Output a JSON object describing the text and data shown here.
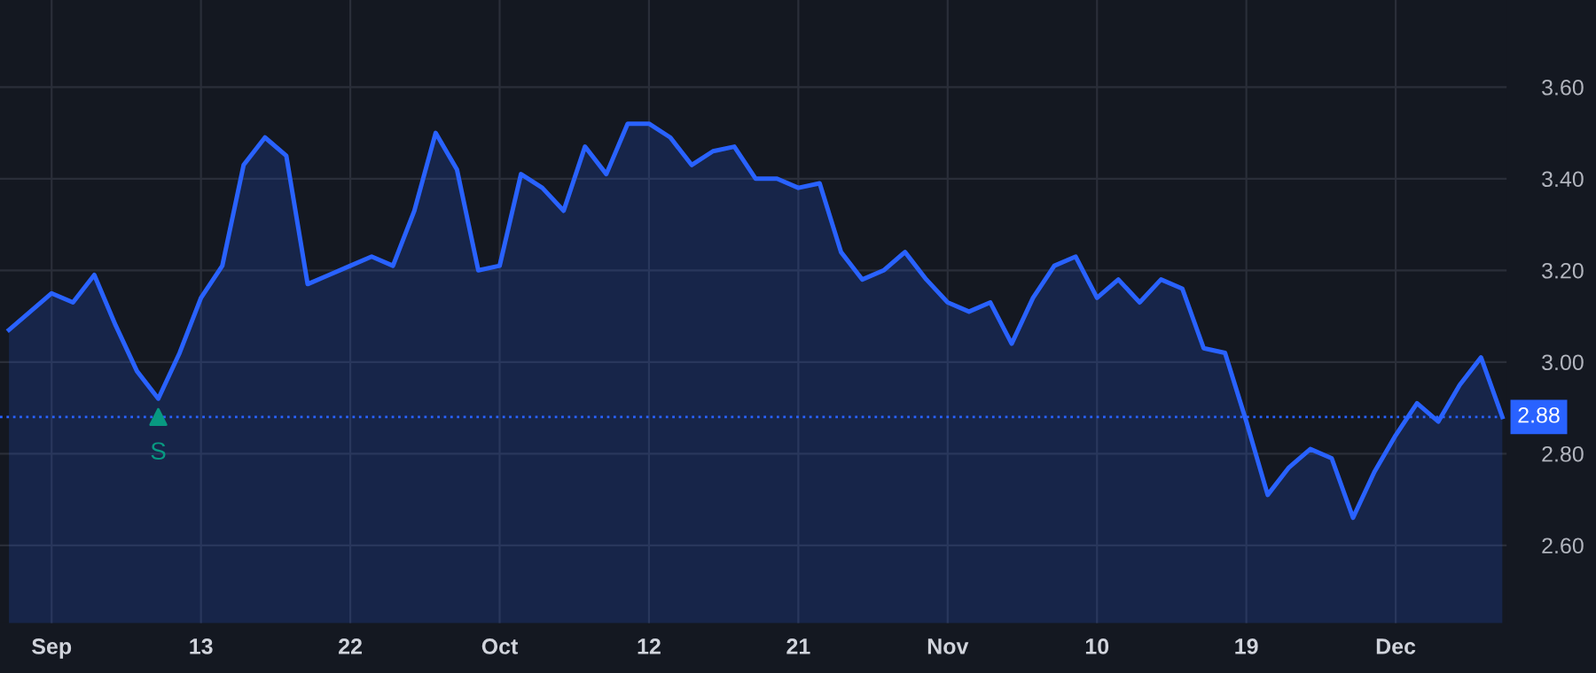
{
  "chart_data": {
    "type": "area",
    "categories": [
      null,
      null,
      "Sep",
      null,
      null,
      null,
      null,
      null,
      null,
      "13",
      null,
      null,
      null,
      null,
      null,
      null,
      "22",
      null,
      null,
      null,
      null,
      null,
      null,
      "Oct",
      null,
      null,
      null,
      null,
      null,
      null,
      "12",
      null,
      null,
      null,
      null,
      null,
      null,
      "21",
      null,
      null,
      null,
      null,
      null,
      null,
      "Nov",
      null,
      null,
      null,
      null,
      null,
      null,
      "10",
      null,
      null,
      null,
      null,
      null,
      null,
      "19",
      null,
      null,
      null,
      null,
      null,
      null,
      "Dec",
      null,
      null,
      null,
      null,
      null
    ],
    "series": [
      {
        "color": "#2962ff",
        "values": [
          3.07,
          3.11,
          3.15,
          3.13,
          3.19,
          3.08,
          2.98,
          2.92,
          3.02,
          3.14,
          3.21,
          3.43,
          3.49,
          3.45,
          3.17,
          3.19,
          3.21,
          3.23,
          3.21,
          3.33,
          3.5,
          3.42,
          3.2,
          3.21,
          3.41,
          3.38,
          3.33,
          3.47,
          3.41,
          3.52,
          3.52,
          3.49,
          3.43,
          3.46,
          3.47,
          3.4,
          3.4,
          3.38,
          3.39,
          3.24,
          3.18,
          3.2,
          3.24,
          3.18,
          3.13,
          3.11,
          3.13,
          3.04,
          3.14,
          3.21,
          3.23,
          3.14,
          3.18,
          3.13,
          3.18,
          3.16,
          3.03,
          3.02,
          2.87,
          2.71,
          2.77,
          2.81,
          2.79,
          2.66,
          2.76,
          2.84,
          2.91,
          2.87,
          2.95,
          3.01,
          2.88
        ]
      },
      {
        "type": "scatter",
        "color": "#089981",
        "marker": "triangle",
        "values": [
          null,
          null,
          null,
          null,
          null,
          null,
          null,
          2.88,
          null,
          null,
          null,
          null,
          null,
          null,
          null,
          null,
          null,
          null,
          null,
          null,
          null,
          null,
          null,
          null,
          null,
          null,
          null,
          null,
          null,
          null,
          null,
          null,
          null,
          null,
          null,
          null,
          null,
          null,
          null,
          null,
          null,
          null,
          null,
          null,
          null,
          null,
          null,
          null,
          null,
          null,
          null,
          null,
          null,
          null,
          null,
          null,
          null,
          null,
          null,
          null,
          null,
          null,
          null,
          null,
          null,
          null,
          null,
          null,
          null,
          null,
          null
        ]
      }
    ],
    "ylim": [
      2.43,
      3.79
    ],
    "yticks": [
      {
        "value": 2.6,
        "label": "2.60"
      },
      {
        "value": 2.8,
        "label": "2.80"
      },
      {
        "value": 3.0,
        "label": "3.00"
      },
      {
        "value": 3.2,
        "label": "3.20"
      },
      {
        "value": 3.4,
        "label": "3.40"
      },
      {
        "value": 3.6,
        "label": "3.60"
      }
    ],
    "ref_lines": [
      {
        "axis": "y",
        "value": 2.88,
        "label": "2.88",
        "color": "#2962ff",
        "line_style": "dotted"
      }
    ],
    "annotations": [
      "S"
    ],
    "grid": true
  }
}
